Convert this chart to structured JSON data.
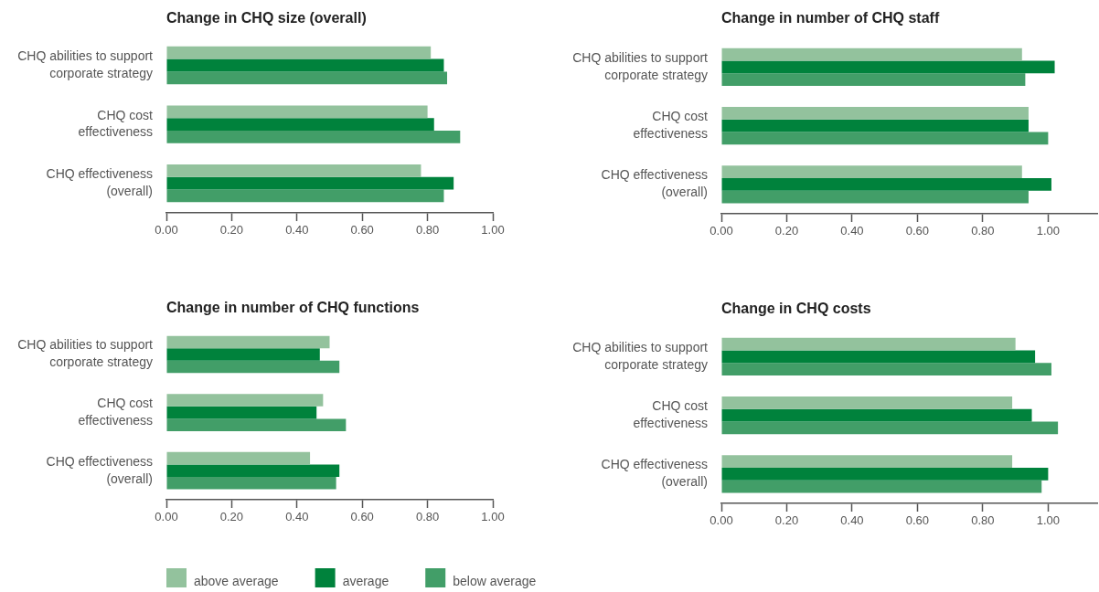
{
  "chart_data": [
    {
      "type": "bar",
      "orientation": "horizontal",
      "title": "Change in CHQ size (overall)",
      "categories": [
        "CHQ abilities to support corporate strategy",
        "CHQ cost effectiveness",
        "CHQ effectiveness (overall)"
      ],
      "series": [
        {
          "color": "#93c29d",
          "values": [
            0.81,
            0.8,
            0.78
          ]
        },
        {
          "color": "#00823c",
          "values": [
            0.85,
            0.82,
            0.88
          ]
        },
        {
          "color": "#429e68",
          "values": [
            0.86,
            0.9,
            0.85
          ]
        }
      ],
      "xlim": [
        0,
        1
      ],
      "xticks": [
        {
          "value": 0,
          "label": "0.00"
        },
        {
          "value": 0.2,
          "label": "0.20"
        },
        {
          "value": 0.4,
          "label": "0.40"
        },
        {
          "value": 0.6,
          "label": "0.60"
        },
        {
          "value": 0.8,
          "label": "0.80"
        },
        {
          "value": 1,
          "label": "1.00"
        }
      ]
    },
    {
      "type": "bar",
      "orientation": "horizontal",
      "title": "Change in number of CHQ staff",
      "categories": [
        "CHQ abilities to support corporate strategy",
        "CHQ cost effectiveness",
        "CHQ effectiveness (overall)"
      ],
      "series": [
        {
          "color": "#93c29d",
          "values": [
            0.92,
            0.94,
            0.92
          ]
        },
        {
          "color": "#00823c",
          "values": [
            1.02,
            0.94,
            1.01
          ]
        },
        {
          "color": "#429e68",
          "values": [
            0.93,
            1.0,
            0.94
          ]
        }
      ],
      "xlim": [
        0,
        1.15
      ],
      "xticks": [
        {
          "value": 0,
          "label": "0.00"
        },
        {
          "value": 0.2,
          "label": "0.20"
        },
        {
          "value": 0.4,
          "label": "0.40"
        },
        {
          "value": 0.6,
          "label": "0.60"
        },
        {
          "value": 0.8,
          "label": "0.80"
        },
        {
          "value": 1,
          "label": "1.00"
        }
      ]
    },
    {
      "type": "bar",
      "orientation": "horizontal",
      "title": "Change in number of CHQ functions",
      "categories": [
        "CHQ abilities to support corporate strategy",
        "CHQ cost effectiveness",
        "CHQ effectiveness (overall)"
      ],
      "series": [
        {
          "name": "above average",
          "color": "#93c29d",
          "values": [
            0.5,
            0.48,
            0.44
          ]
        },
        {
          "name": "average",
          "color": "#00823c",
          "values": [
            0.47,
            0.46,
            0.53
          ]
        },
        {
          "name": "below average",
          "color": "#429e68",
          "values": [
            0.53,
            0.55,
            0.52
          ]
        }
      ],
      "xlim": [
        0,
        1
      ],
      "xticks": [
        {
          "value": 0,
          "label": "0.00"
        },
        {
          "value": 0.2,
          "label": "0.20"
        },
        {
          "value": 0.4,
          "label": "0.40"
        },
        {
          "value": 0.6,
          "label": "0.60"
        },
        {
          "value": 0.8,
          "label": "0.80"
        },
        {
          "value": 1,
          "label": "1.00"
        }
      ],
      "legend": "bottom"
    },
    {
      "type": "bar",
      "orientation": "horizontal",
      "title": "Change in CHQ costs",
      "categories": [
        "CHQ abilities to support corporate strategy",
        "CHQ cost effectiveness",
        "CHQ effectiveness (overall)"
      ],
      "series": [
        {
          "color": "#93c29d",
          "values": [
            0.9,
            0.89,
            0.89
          ]
        },
        {
          "color": "#00823c",
          "values": [
            0.96,
            0.95,
            1.0
          ]
        },
        {
          "color": "#429e68",
          "values": [
            1.01,
            1.03,
            0.98
          ]
        }
      ],
      "xlim": [
        0,
        1.15
      ],
      "xticks": [
        {
          "value": 0,
          "label": "0.00"
        },
        {
          "value": 0.2,
          "label": "0.20"
        },
        {
          "value": 0.4,
          "label": "0.40"
        },
        {
          "value": 0.6,
          "label": "0.60"
        },
        {
          "value": 0.8,
          "label": "0.80"
        },
        {
          "value": 1,
          "label": "1.00"
        }
      ]
    }
  ]
}
